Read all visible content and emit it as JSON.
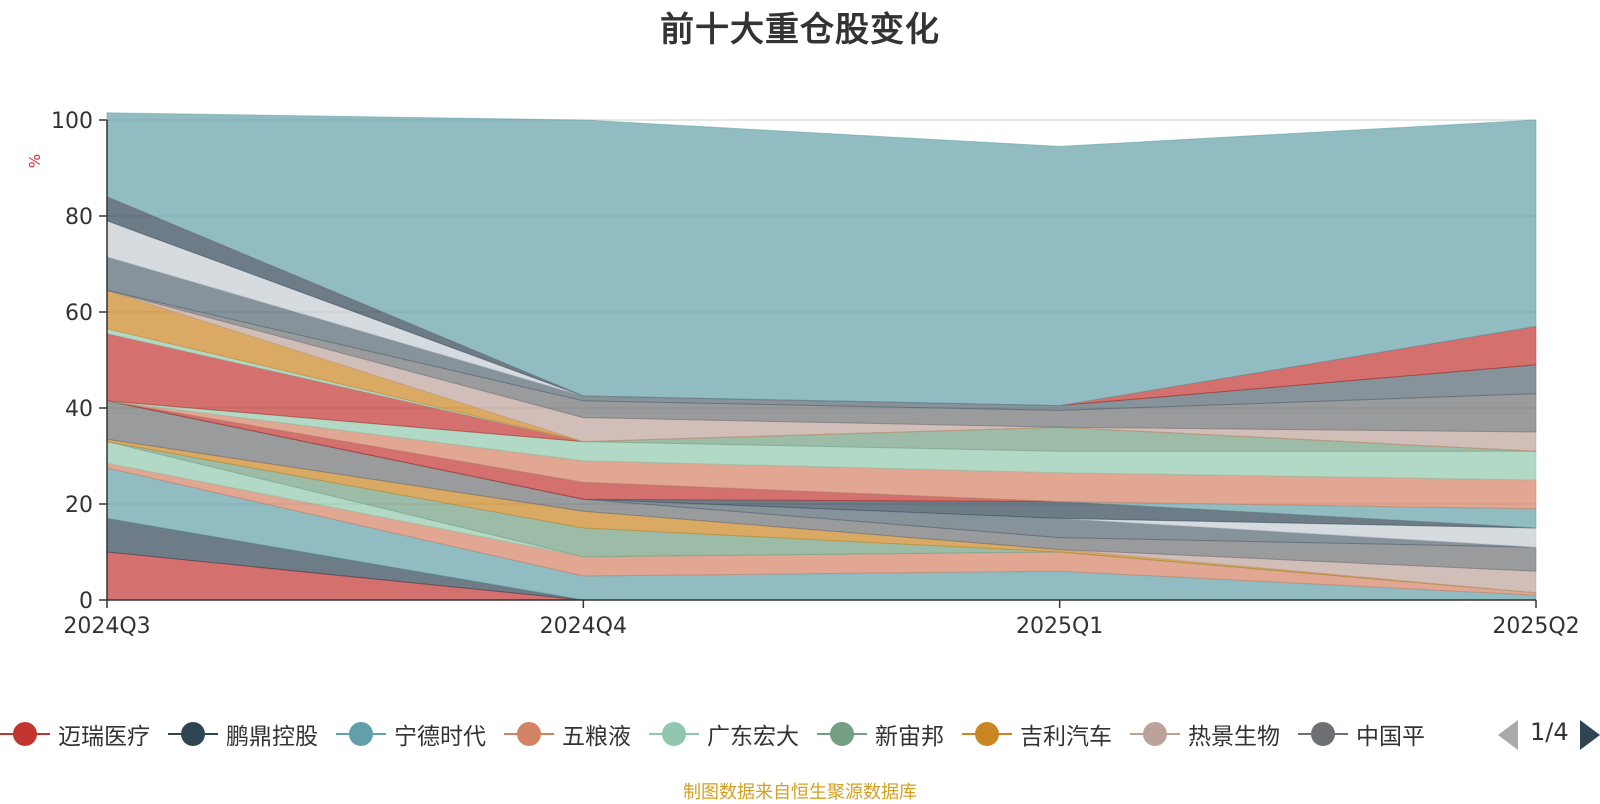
{
  "colors": {
    "title": "#333333",
    "axis": "#333333",
    "grid": "#cccccc",
    "unit": "#e0282e",
    "source": "#d4a020"
  },
  "legend": {
    "items": [
      {
        "label": "迈瑞医疗",
        "color": "#c23531"
      },
      {
        "label": "鹏鼎控股",
        "color": "#2f4554"
      },
      {
        "label": "宁德时代",
        "color": "#61a0a8"
      },
      {
        "label": "五粮液",
        "color": "#d48265"
      },
      {
        "label": "广东宏大",
        "color": "#91c7ae"
      },
      {
        "label": "新宙邦",
        "color": "#749f83"
      },
      {
        "label": "吉利汽车",
        "color": "#ca8622"
      },
      {
        "label": "热景生物",
        "color": "#bda29a"
      },
      {
        "label": "中国平",
        "color": "#6e7074"
      }
    ],
    "page": "1/4"
  },
  "source_note": "制图数据来自恒生聚源数据库",
  "chart_data": {
    "type": "area",
    "stacked": true,
    "title": "前十大重仓股变化",
    "ylabel": "%",
    "xlabel": "",
    "categories": [
      "2024Q3",
      "2024Q4",
      "2025Q1",
      "2025Q2"
    ],
    "ylim": [
      0,
      100
    ],
    "yticks": [
      0,
      20,
      40,
      60,
      80,
      100
    ],
    "grid": true,
    "legend_position": "bottom",
    "layers": [
      {
        "color": "#c23531",
        "values": [
          10,
          0,
          0,
          0
        ]
      },
      {
        "color": "#2f4554",
        "values": [
          7,
          0,
          0,
          0
        ]
      },
      {
        "color": "#61a0a8",
        "values": [
          10.5,
          5,
          6,
          1
        ]
      },
      {
        "color": "#d48265",
        "values": [
          1,
          4,
          4,
          0.5
        ]
      },
      {
        "color": "#91c7ae",
        "values": [
          4.5,
          0,
          0,
          0
        ]
      },
      {
        "color": "#749f83",
        "values": [
          0,
          6,
          0,
          0
        ]
      },
      {
        "color": "#ca8622",
        "values": [
          0.5,
          3.5,
          0.5,
          0
        ]
      },
      {
        "color": "#bda29a",
        "values": [
          0,
          0,
          0,
          4.5
        ]
      },
      {
        "color": "#6e7074",
        "values": [
          8,
          2.5,
          2.5,
          5
        ]
      },
      {
        "color": "#546570",
        "values": [
          0,
          0,
          4,
          0
        ]
      },
      {
        "color": "#c4ccd3",
        "values": [
          0,
          0,
          0,
          4
        ]
      },
      {
        "color": "#2f4554",
        "values": [
          0,
          0,
          3.5,
          0
        ]
      },
      {
        "color": "#c23531",
        "values": [
          0,
          3.5,
          0,
          0
        ]
      },
      {
        "color": "#61a0a8",
        "values": [
          0,
          0,
          0,
          4
        ]
      },
      {
        "color": "#d48265",
        "values": [
          0,
          4.5,
          6,
          6
        ]
      },
      {
        "color": "#91c7ae",
        "values": [
          0,
          4,
          4.5,
          6
        ]
      },
      {
        "color": "#749f83",
        "values": [
          0,
          0,
          5,
          0
        ]
      },
      {
        "color": "#c23531",
        "values": [
          14,
          0,
          0,
          0
        ]
      },
      {
        "color": "#91c7ae",
        "values": [
          1,
          0,
          0,
          0
        ]
      },
      {
        "color": "#ca8622",
        "values": [
          8,
          0,
          0,
          0
        ]
      },
      {
        "color": "#bda29a",
        "values": [
          0,
          5,
          0,
          4
        ]
      },
      {
        "color": "#6e7074",
        "values": [
          0,
          3.5,
          3.5,
          8
        ]
      },
      {
        "color": "#546570",
        "values": [
          7,
          1,
          1,
          6
        ]
      },
      {
        "color": "#c4ccd3",
        "values": [
          7.5,
          0,
          0,
          0
        ]
      },
      {
        "color": "#2f4554",
        "values": [
          5,
          0,
          0,
          0
        ]
      },
      {
        "color": "#c23531",
        "values": [
          0,
          0,
          0,
          8
        ]
      },
      {
        "color": "#61a0a8",
        "values": [
          17.5,
          57.5,
          54,
          43
        ]
      }
    ]
  }
}
